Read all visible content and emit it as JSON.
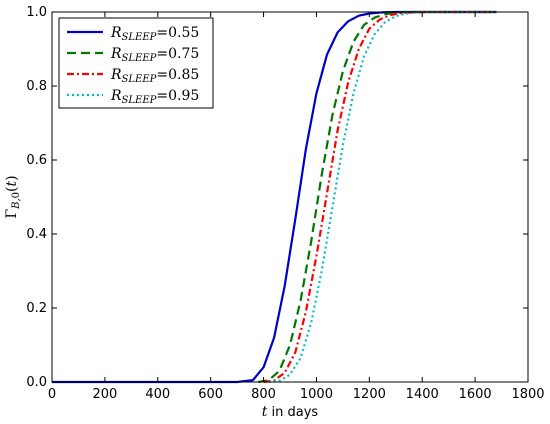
{
  "chart_data": {
    "type": "line",
    "xlabel": "t in days",
    "ylabel": "Γ_{B,0}(t)",
    "xlim": [
      0,
      1800
    ],
    "ylim": [
      0,
      1.0
    ],
    "xticks": [
      0,
      200,
      400,
      600,
      800,
      1000,
      1200,
      1400,
      1600,
      1800
    ],
    "yticks": [
      0.0,
      0.2,
      0.4,
      0.6,
      0.8,
      1.0
    ],
    "xtick_labels": [
      "0",
      "200",
      "400",
      "600",
      "800",
      "1000",
      "1200",
      "1400",
      "1600",
      "1800"
    ],
    "ytick_labels": [
      "0.0",
      "0.2",
      "0.4",
      "0.6",
      "0.8",
      "1.0"
    ],
    "grid": false,
    "legend_position": "top-left",
    "series": [
      {
        "name": "R_SLEEP = 0.55",
        "legend_label": "0.55",
        "color": "#0000cc",
        "style": "solid",
        "x": [
          0,
          700,
          760,
          800,
          840,
          880,
          920,
          960,
          1000,
          1040,
          1080,
          1120,
          1160,
          1200,
          1250,
          1300,
          1400,
          1500,
          1680
        ],
        "y": [
          0,
          0.0,
          0.005,
          0.04,
          0.12,
          0.26,
          0.44,
          0.63,
          0.78,
          0.885,
          0.945,
          0.975,
          0.99,
          0.996,
          0.999,
          1.0,
          1.0,
          1.0,
          1.0
        ]
      },
      {
        "name": "R_SLEEP = 0.75",
        "legend_label": "0.75",
        "color": "#007700",
        "style": "dashed",
        "x": [
          780,
          820,
          860,
          900,
          940,
          980,
          1020,
          1060,
          1100,
          1140,
          1180,
          1220,
          1260,
          1300,
          1340,
          1400,
          1500,
          1680
        ],
        "y": [
          0.0,
          0.005,
          0.03,
          0.1,
          0.22,
          0.38,
          0.56,
          0.72,
          0.84,
          0.92,
          0.965,
          0.985,
          0.994,
          0.998,
          1.0,
          1.0,
          1.0,
          1.0
        ]
      },
      {
        "name": "R_SLEEP = 0.85",
        "legend_label": "0.85",
        "color": "#ff0000",
        "style": "dashdot",
        "x": [
          800,
          840,
          880,
          920,
          960,
          1000,
          1040,
          1080,
          1120,
          1160,
          1200,
          1240,
          1280,
          1320,
          1360,
          1400,
          1500,
          1680
        ],
        "y": [
          0.0,
          0.004,
          0.025,
          0.08,
          0.19,
          0.34,
          0.51,
          0.68,
          0.81,
          0.9,
          0.955,
          0.98,
          0.992,
          0.997,
          0.999,
          1.0,
          1.0,
          1.0
        ]
      },
      {
        "name": "R_SLEEP = 0.95",
        "legend_label": "0.95",
        "color": "#00bbcc",
        "style": "dotted",
        "x": [
          820,
          860,
          900,
          940,
          980,
          1020,
          1060,
          1100,
          1140,
          1180,
          1220,
          1260,
          1300,
          1340,
          1380,
          1420,
          1500,
          1680
        ],
        "y": [
          0.0,
          0.003,
          0.02,
          0.065,
          0.16,
          0.3,
          0.47,
          0.64,
          0.78,
          0.88,
          0.94,
          0.973,
          0.989,
          0.996,
          0.999,
          1.0,
          1.0,
          1.0
        ]
      }
    ]
  }
}
